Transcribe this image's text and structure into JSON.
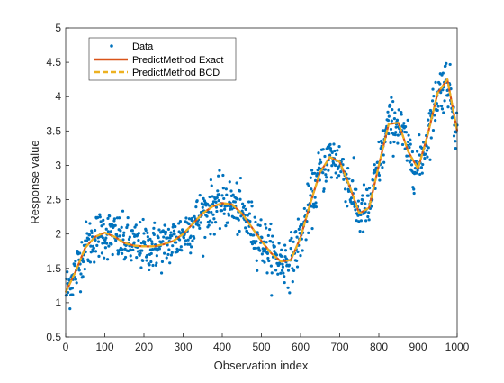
{
  "chart_data": {
    "type": "scatter",
    "xlabel": "Observation index",
    "ylabel": "Response value",
    "xlim": [
      0,
      1000
    ],
    "ylim": [
      0.5,
      5
    ],
    "xticks": [
      "0",
      "100",
      "200",
      "300",
      "400",
      "500",
      "600",
      "700",
      "800",
      "900",
      "1000"
    ],
    "yticks": [
      "0.5",
      "1",
      "1.5",
      "2",
      "2.5",
      "3",
      "3.5",
      "4",
      "4.5",
      "5"
    ],
    "grid": false,
    "legend_position": "top-left",
    "legend": [
      "Data",
      "PredictMethod Exact",
      "PredictMethod BCD"
    ],
    "series": [
      {
        "name": "Data",
        "style": "markers",
        "color": "#0072BD",
        "point_count": 1000,
        "x_range": [
          1,
          1000
        ],
        "noise_sd": 0.18
      },
      {
        "name": "PredictMethod Exact",
        "style": "solid-line",
        "color": "#D95319",
        "x": [
          0,
          25,
          50,
          75,
          100,
          125,
          150,
          175,
          200,
          225,
          250,
          275,
          300,
          325,
          350,
          375,
          400,
          425,
          450,
          475,
          500,
          525,
          550,
          575,
          600,
          625,
          650,
          675,
          700,
          725,
          750,
          775,
          800,
          825,
          850,
          875,
          900,
          925,
          950,
          975,
          1000
        ],
        "y": [
          1.15,
          1.45,
          1.8,
          1.96,
          2.02,
          1.96,
          1.87,
          1.83,
          1.82,
          1.82,
          1.85,
          1.9,
          2.0,
          2.15,
          2.3,
          2.4,
          2.45,
          2.43,
          2.3,
          2.1,
          1.9,
          1.72,
          1.6,
          1.62,
          1.95,
          2.45,
          2.9,
          3.12,
          3.05,
          2.7,
          2.3,
          2.38,
          3.0,
          3.6,
          3.62,
          3.2,
          2.95,
          3.45,
          4.05,
          4.25,
          3.5
        ]
      },
      {
        "name": "PredictMethod BCD",
        "style": "dashed-line",
        "color": "#EDB120",
        "x": [
          0,
          25,
          50,
          75,
          100,
          125,
          150,
          175,
          200,
          225,
          250,
          275,
          300,
          325,
          350,
          375,
          400,
          425,
          450,
          475,
          500,
          525,
          550,
          575,
          600,
          625,
          650,
          675,
          700,
          725,
          750,
          775,
          800,
          825,
          850,
          875,
          900,
          925,
          950,
          975,
          1000
        ],
        "y": [
          1.15,
          1.45,
          1.8,
          1.96,
          2.02,
          1.96,
          1.87,
          1.83,
          1.82,
          1.82,
          1.85,
          1.9,
          2.0,
          2.15,
          2.3,
          2.4,
          2.45,
          2.43,
          2.3,
          2.1,
          1.9,
          1.72,
          1.6,
          1.62,
          1.95,
          2.45,
          2.9,
          3.12,
          3.05,
          2.7,
          2.3,
          2.38,
          3.0,
          3.6,
          3.62,
          3.2,
          2.95,
          3.45,
          4.05,
          4.25,
          3.5
        ]
      }
    ]
  }
}
